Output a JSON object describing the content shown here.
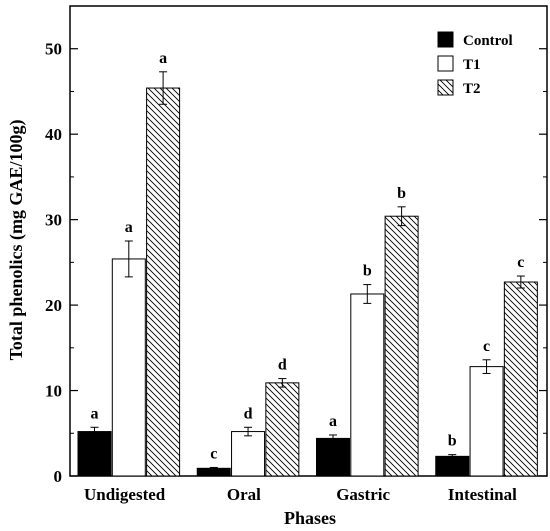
{
  "chart_data": {
    "type": "bar",
    "xlabel": "Phases",
    "ylabel": "Total phenolics (mg GAE/100g)",
    "ylim": [
      0,
      55
    ],
    "yticks": [
      0,
      10,
      20,
      30,
      40,
      50
    ],
    "grid": false,
    "legend_position": "top-right",
    "categories": [
      "Undigested",
      "Oral",
      "Gastric",
      "Intestinal"
    ],
    "series": [
      {
        "name": "Control",
        "fill": "solid-black",
        "values": [
          5.2,
          0.9,
          4.4,
          2.3
        ],
        "errors": [
          0.5,
          0.1,
          0.4,
          0.2
        ],
        "labels": [
          "a",
          "c",
          "a",
          "b"
        ]
      },
      {
        "name": "T1",
        "fill": "white",
        "values": [
          25.4,
          5.2,
          21.3,
          12.8
        ],
        "errors": [
          2.1,
          0.5,
          1.1,
          0.8
        ],
        "labels": [
          "a",
          "d",
          "b",
          "c"
        ]
      },
      {
        "name": "T2",
        "fill": "diagonal-hatch",
        "values": [
          45.4,
          10.9,
          30.4,
          22.7
        ],
        "errors": [
          1.9,
          0.5,
          1.1,
          0.7
        ],
        "labels": [
          "a",
          "d",
          "b",
          "c"
        ]
      }
    ]
  }
}
